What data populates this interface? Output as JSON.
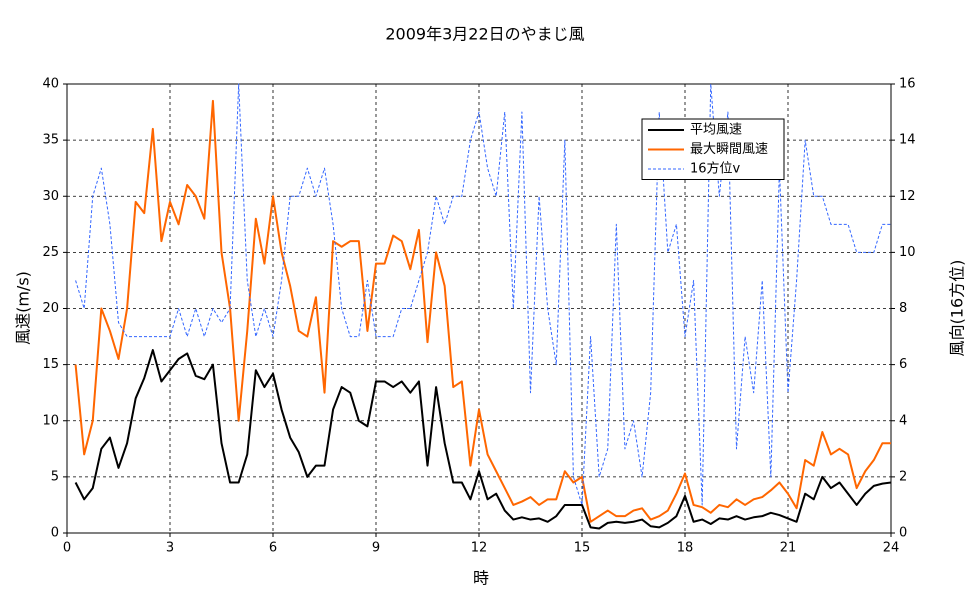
{
  "chart_data": {
    "type": "line",
    "title": "2009年3月22日のやまじ風",
    "xlabel": "時",
    "ylabel": "風速(m/s)",
    "y2label": "風向(16方位)",
    "x": [
      0.25,
      0.5,
      0.75,
      1,
      1.25,
      1.5,
      1.75,
      2,
      2.25,
      2.5,
      2.75,
      3,
      3.25,
      3.5,
      3.75,
      4,
      4.25,
      4.5,
      4.75,
      5,
      5.25,
      5.5,
      5.75,
      6,
      6.25,
      6.5,
      6.75,
      7,
      7.25,
      7.5,
      7.75,
      8,
      8.25,
      8.5,
      8.75,
      9,
      9.25,
      9.5,
      9.75,
      10,
      10.25,
      10.5,
      10.75,
      11,
      11.25,
      11.5,
      11.75,
      12,
      12.25,
      12.5,
      12.75,
      13,
      13.25,
      13.5,
      13.75,
      14,
      14.25,
      14.5,
      14.75,
      15,
      15.25,
      15.5,
      15.75,
      16,
      16.25,
      16.5,
      16.75,
      17,
      17.25,
      17.5,
      17.75,
      18,
      18.25,
      18.5,
      18.75,
      19,
      19.25,
      19.5,
      19.75,
      20,
      20.25,
      20.5,
      20.75,
      21,
      21.25,
      21.5,
      21.75,
      22,
      22.25,
      22.5,
      22.75,
      23,
      23.25,
      23.5,
      23.75,
      24
    ],
    "series": [
      {
        "name": "平均風速",
        "color": "#000000",
        "linestyle": "solid",
        "values": [
          4.5,
          3,
          4,
          7.5,
          8.5,
          5.8,
          8,
          12,
          13.8,
          16.3,
          13.5,
          14.5,
          15.5,
          16,
          14,
          13.7,
          15,
          8,
          4.5,
          4.5,
          7,
          14.5,
          13,
          14.2,
          11,
          8.5,
          7.2,
          5,
          6,
          6,
          11,
          13,
          12.5,
          10,
          9.5,
          13.5,
          13.5,
          13,
          13.5,
          12.5,
          13.5,
          6,
          13,
          8,
          4.5,
          4.5,
          3,
          5.5,
          3,
          3.5,
          2,
          1.2,
          1.4,
          1.2,
          1.3,
          1,
          1.5,
          2.5,
          2.5,
          2.5,
          0.5,
          0.4,
          0.9,
          1,
          0.9,
          1,
          1.2,
          0.6,
          0.5,
          0.9,
          1.5,
          3.3,
          1,
          1.2,
          0.8,
          1.3,
          1.2,
          1.5,
          1.2,
          1.4,
          1.5,
          1.8,
          1.6,
          1.3,
          1,
          3.5,
          3,
          5,
          4,
          4.5,
          3.5,
          2.5,
          3.5,
          4.2,
          4.4,
          4.5
        ]
      },
      {
        "name": "最大瞬間風速",
        "color": "#ff6600",
        "linestyle": "solid",
        "values": [
          15,
          7,
          10,
          20,
          18,
          15.5,
          20,
          29.5,
          28.5,
          36,
          26,
          29.5,
          27.5,
          31,
          30,
          28,
          38.5,
          25,
          20,
          10,
          18,
          28,
          24,
          30,
          25,
          22,
          18,
          17.5,
          21,
          12.5,
          26,
          25.5,
          26,
          26,
          18,
          24,
          24,
          26.5,
          26,
          23.5,
          27,
          17,
          25,
          22,
          13,
          13.5,
          6,
          11,
          7,
          5.5,
          4,
          2.5,
          2.8,
          3.2,
          2.5,
          3,
          3,
          5.5,
          4.5,
          5,
          1,
          1.5,
          2,
          1.5,
          1.5,
          2,
          2.2,
          1.2,
          1.5,
          2,
          3.5,
          5.3,
          2.5,
          2.3,
          1.8,
          2.5,
          2.3,
          3,
          2.5,
          3,
          3.2,
          3.8,
          4.5,
          3.5,
          2.2,
          6.5,
          6,
          9,
          7,
          7.5,
          7,
          4,
          5.5,
          6.5,
          8,
          8
        ]
      },
      {
        "name": "16方位v",
        "color": "#3366ff",
        "linestyle": "dashed",
        "axis": "y2",
        "values": [
          9,
          8,
          12,
          13,
          11,
          7.5,
          7,
          7,
          7,
          7,
          7,
          7,
          8,
          7,
          8,
          7,
          8,
          7.5,
          8,
          16,
          9,
          7,
          8,
          7,
          9,
          12,
          12,
          13,
          12,
          13,
          11,
          8,
          7,
          7,
          9,
          7,
          7,
          7,
          8,
          8,
          9,
          10,
          12,
          11,
          12,
          12,
          14,
          15,
          13,
          12,
          15,
          8,
          15,
          5,
          12,
          8,
          6,
          14,
          2,
          1,
          7,
          2,
          3,
          11,
          3,
          4,
          2,
          5,
          15,
          10,
          11,
          7,
          9,
          1,
          16,
          12,
          15,
          3,
          7,
          5,
          9,
          2,
          13,
          5,
          9,
          14,
          12,
          12,
          11,
          11,
          11,
          10,
          10,
          10,
          11,
          11
        ]
      }
    ],
    "xlim": [
      0,
      24
    ],
    "xticks": [
      0,
      3,
      6,
      9,
      12,
      15,
      18,
      21,
      24
    ],
    "ylim": [
      0,
      40
    ],
    "yticks": [
      0,
      5,
      10,
      15,
      20,
      25,
      30,
      35,
      40
    ],
    "y2lim": [
      0,
      16
    ],
    "y2ticks": [
      0,
      2,
      4,
      6,
      8,
      10,
      12,
      14,
      16
    ],
    "grid": true,
    "legend": "upper right"
  }
}
